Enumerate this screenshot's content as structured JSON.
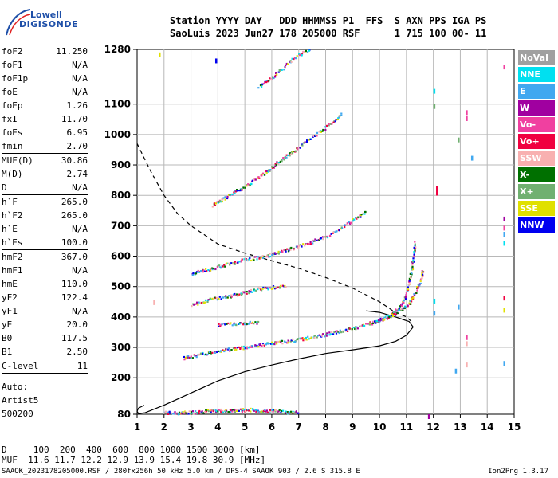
{
  "logo": {
    "line1": "Lowell",
    "line2": "DIGISONDE"
  },
  "header": {
    "line1": "Station YYYY DAY   DDD HHMMSS P1  FFS  S AXN PPS IGA PS",
    "line2": "SaoLuis 2023 Jun27 178 205000 RSF      1 715 100 00- 11"
  },
  "params": [
    {
      "label": "foF2",
      "value": "11.250"
    },
    {
      "label": "foF1",
      "value": "N/A"
    },
    {
      "label": "foF1p",
      "value": "N/A"
    },
    {
      "label": "foE",
      "value": "N/A"
    },
    {
      "label": "foEp",
      "value": "1.26"
    },
    {
      "label": "fxI",
      "value": "11.70"
    },
    {
      "label": "foEs",
      "value": "6.95"
    },
    {
      "label": "fmin",
      "value": "2.70"
    },
    {
      "sep": true
    },
    {
      "label": "MUF(D)",
      "value": "30.86"
    },
    {
      "label": "M(D)",
      "value": "2.74"
    },
    {
      "label": "D",
      "value": "N/A"
    },
    {
      "sep": true
    },
    {
      "label": "h`F",
      "value": "265.0"
    },
    {
      "label": "h`F2",
      "value": "265.0"
    },
    {
      "label": "h`E",
      "value": "N/A"
    },
    {
      "label": "h`Es",
      "value": "100.0"
    },
    {
      "sep": true
    },
    {
      "label": "hmF2",
      "value": "367.0"
    },
    {
      "label": "hmF1",
      "value": "N/A"
    },
    {
      "label": "hmE",
      "value": "110.0"
    },
    {
      "label": "yF2",
      "value": "122.4"
    },
    {
      "label": "yF1",
      "value": "N/A"
    },
    {
      "label": "yE",
      "value": "20.0"
    },
    {
      "label": "B0",
      "value": "117.5"
    },
    {
      "label": "B1",
      "value": "2.50"
    },
    {
      "sep": true
    },
    {
      "label": "C-level",
      "value": "11"
    },
    {
      "sep": true
    }
  ],
  "autoscale": {
    "line1": "Auto:",
    "line2": "Artist5",
    "line3": "500200"
  },
  "muf_table": {
    "line1": "D     100  200  400  600  800 1000 1500 3000 [km]",
    "line2": "MUF  11.6 11.7 12.2 12.9 13.9 15.4 19.8 30.9 [MHz]"
  },
  "footer": {
    "left": "SAAOK_2023178205000.RSF / 280fx256h 50 kHz 5.0 km / DPS-4 SAAOK 903 / 2.6 S 315.8 E",
    "right": "Ion2Png 1.3.17"
  },
  "legend": [
    {
      "label": "NoVal",
      "color": "#a0a0a0"
    },
    {
      "label": "NNE",
      "color": "#00e0f0"
    },
    {
      "label": "E",
      "color": "#40a8f0"
    },
    {
      "label": "W",
      "color": "#a000a0"
    },
    {
      "label": "Vo-",
      "color": "#f040a0"
    },
    {
      "label": "Vo+",
      "color": "#f00040"
    },
    {
      "label": "SSW",
      "color": "#f8b0b0"
    },
    {
      "label": "X-",
      "color": "#007000"
    },
    {
      "label": "X+",
      "color": "#70b070"
    },
    {
      "label": "SSE",
      "color": "#e0e000"
    },
    {
      "label": "NNW",
      "color": "#0000f0"
    }
  ],
  "chart_data": {
    "type": "scatter",
    "xlabel": "",
    "ylabel": "",
    "xlim": [
      1,
      15
    ],
    "ylim": [
      80,
      1280
    ],
    "x_ticks": [
      1,
      2,
      3,
      4,
      5,
      6,
      7,
      8,
      9,
      10,
      11,
      12,
      13,
      14,
      15
    ],
    "y_ticks": [
      80,
      200,
      300,
      400,
      500,
      600,
      700,
      800,
      900,
      1000,
      1100,
      1280
    ],
    "y_tick_labels": [
      "80",
      "200",
      "300",
      "400",
      "500",
      "600",
      "700",
      "800",
      "900",
      "1000",
      "1100",
      "1280"
    ],
    "grid": true,
    "echo_traces": [
      {
        "name": "Es",
        "points": [
          [
            2.0,
            88
          ],
          [
            2.4,
            86
          ],
          [
            2.8,
            88
          ],
          [
            3.2,
            90
          ],
          [
            3.6,
            93
          ],
          [
            4.0,
            95
          ],
          [
            4.4,
            93
          ],
          [
            4.8,
            95
          ],
          [
            5.2,
            97
          ],
          [
            5.6,
            92
          ],
          [
            6.0,
            94
          ],
          [
            6.5,
            90
          ],
          [
            7.0,
            88
          ]
        ]
      },
      {
        "name": "F2-o",
        "points": [
          [
            2.7,
            268
          ],
          [
            3.0,
            272
          ],
          [
            3.5,
            282
          ],
          [
            4.0,
            291
          ],
          [
            4.5,
            297
          ],
          [
            5.0,
            303
          ],
          [
            5.5,
            310
          ],
          [
            6.0,
            315
          ],
          [
            6.5,
            322
          ],
          [
            7.0,
            328
          ],
          [
            7.5,
            336
          ],
          [
            8.0,
            345
          ],
          [
            8.5,
            354
          ],
          [
            9.0,
            364
          ],
          [
            9.5,
            378
          ],
          [
            10.0,
            392
          ],
          [
            10.4,
            410
          ],
          [
            10.7,
            430
          ],
          [
            10.9,
            460
          ],
          [
            11.05,
            500
          ],
          [
            11.15,
            550
          ],
          [
            11.25,
            600
          ],
          [
            11.3,
            650
          ]
        ]
      },
      {
        "name": "F2-x",
        "points": [
          [
            9.6,
            380
          ],
          [
            10.0,
            392
          ],
          [
            10.4,
            405
          ],
          [
            10.8,
            425
          ],
          [
            11.1,
            450
          ],
          [
            11.3,
            480
          ],
          [
            11.5,
            520
          ],
          [
            11.6,
            560
          ]
        ]
      },
      {
        "name": "2F2",
        "points": [
          [
            3.0,
            545
          ],
          [
            3.5,
            555
          ],
          [
            4.0,
            568
          ],
          [
            4.5,
            578
          ],
          [
            5.0,
            590
          ],
          [
            5.5,
            598
          ],
          [
            6.0,
            608
          ],
          [
            6.5,
            620
          ],
          [
            7.0,
            635
          ],
          [
            7.5,
            650
          ],
          [
            8.0,
            665
          ],
          [
            8.5,
            690
          ],
          [
            9.0,
            720
          ],
          [
            9.5,
            750
          ]
        ]
      },
      {
        "name": "3F2",
        "points": [
          [
            3.8,
            770
          ],
          [
            4.2,
            790
          ],
          [
            4.6,
            815
          ],
          [
            5.0,
            830
          ],
          [
            5.4,
            855
          ],
          [
            5.8,
            880
          ],
          [
            6.2,
            910
          ],
          [
            6.6,
            935
          ],
          [
            7.0,
            960
          ],
          [
            7.6,
            1000
          ],
          [
            8.2,
            1040
          ],
          [
            8.6,
            1070
          ]
        ]
      },
      {
        "name": "4F2",
        "points": [
          [
            5.5,
            1160
          ],
          [
            6.0,
            1190
          ],
          [
            6.5,
            1230
          ],
          [
            7.0,
            1265
          ],
          [
            7.4,
            1280
          ]
        ]
      },
      {
        "name": "2Es",
        "points": [
          [
            3.0,
            440
          ],
          [
            3.5,
            455
          ],
          [
            4.0,
            465
          ],
          [
            4.5,
            472
          ],
          [
            5.0,
            482
          ],
          [
            5.5,
            495
          ],
          [
            6.0,
            500
          ],
          [
            6.5,
            505
          ]
        ]
      },
      {
        "name": "Es-2",
        "points": [
          [
            4.0,
            375
          ],
          [
            4.5,
            380
          ],
          [
            5.0,
            382
          ],
          [
            5.5,
            385
          ]
        ]
      }
    ],
    "profile_solid": [
      [
        1.26,
        110
      ],
      [
        1.05,
        100
      ],
      [
        1.0,
        90
      ],
      [
        1.05,
        82
      ],
      [
        1.3,
        85
      ],
      [
        2.0,
        110
      ],
      [
        3.0,
        150
      ],
      [
        4.0,
        190
      ],
      [
        5.0,
        220
      ],
      [
        6.0,
        242
      ],
      [
        7.0,
        262
      ],
      [
        8.0,
        280
      ],
      [
        9.0,
        292
      ],
      [
        10.0,
        305
      ],
      [
        10.6,
        320
      ],
      [
        11.0,
        340
      ],
      [
        11.25,
        367
      ],
      [
        11.1,
        385
      ],
      [
        10.6,
        400
      ],
      [
        10.0,
        415
      ],
      [
        9.5,
        420
      ]
    ],
    "profile_dashed": [
      [
        1.0,
        970
      ],
      [
        1.5,
        880
      ],
      [
        2.0,
        800
      ],
      [
        2.5,
        740
      ],
      [
        3.0,
        700
      ],
      [
        3.5,
        670
      ],
      [
        4.0,
        640
      ],
      [
        5.0,
        610
      ],
      [
        6.0,
        585
      ],
      [
        7.0,
        560
      ],
      [
        8.0,
        530
      ],
      [
        9.0,
        495
      ],
      [
        10.0,
        450
      ],
      [
        10.5,
        420
      ],
      [
        11.0,
        400
      ],
      [
        11.25,
        380
      ]
    ],
    "side_marks": [
      {
        "x": 1.8,
        "y": 1270,
        "color": "#e0e000"
      },
      {
        "x": 12.0,
        "y": 1150,
        "color": "#00e0f0"
      },
      {
        "x": 12.0,
        "y": 1100,
        "color": "#70b070"
      },
      {
        "x": 13.2,
        "y": 1080,
        "color": "#f040a0"
      },
      {
        "x": 13.2,
        "y": 1060,
        "color": "#f040a0"
      },
      {
        "x": 12.9,
        "y": 990,
        "color": "#70b070"
      },
      {
        "x": 12.1,
        "y": 830,
        "color": "#f00040"
      },
      {
        "x": 12.1,
        "y": 815,
        "color": "#f00040"
      },
      {
        "x": 13.4,
        "y": 930,
        "color": "#40a8f0"
      },
      {
        "x": 14.6,
        "y": 1230,
        "color": "#f040a0"
      },
      {
        "x": 14.6,
        "y": 730,
        "color": "#a000a0"
      },
      {
        "x": 14.6,
        "y": 700,
        "color": "#f040a0"
      },
      {
        "x": 14.6,
        "y": 680,
        "color": "#40a8f0"
      },
      {
        "x": 14.6,
        "y": 650,
        "color": "#00e0f0"
      },
      {
        "x": 12.0,
        "y": 460,
        "color": "#00e0f0"
      },
      {
        "x": 12.0,
        "y": 420,
        "color": "#40a8f0"
      },
      {
        "x": 12.9,
        "y": 440,
        "color": "#40a8f0"
      },
      {
        "x": 13.2,
        "y": 340,
        "color": "#f040a0"
      },
      {
        "x": 13.2,
        "y": 320,
        "color": "#f8b0b0"
      },
      {
        "x": 13.2,
        "y": 250,
        "color": "#f8b0b0"
      },
      {
        "x": 12.8,
        "y": 230,
        "color": "#40a8f0"
      },
      {
        "x": 14.6,
        "y": 470,
        "color": "#f00040"
      },
      {
        "x": 14.6,
        "y": 430,
        "color": "#e0e000"
      },
      {
        "x": 14.6,
        "y": 255,
        "color": "#40a8f0"
      },
      {
        "x": 1.6,
        "y": 455,
        "color": "#f8b0b0"
      },
      {
        "x": 11.8,
        "y": 80,
        "color": "#a000a0"
      },
      {
        "x": 3.9,
        "y": 1250,
        "color": "#0000f0"
      }
    ]
  }
}
